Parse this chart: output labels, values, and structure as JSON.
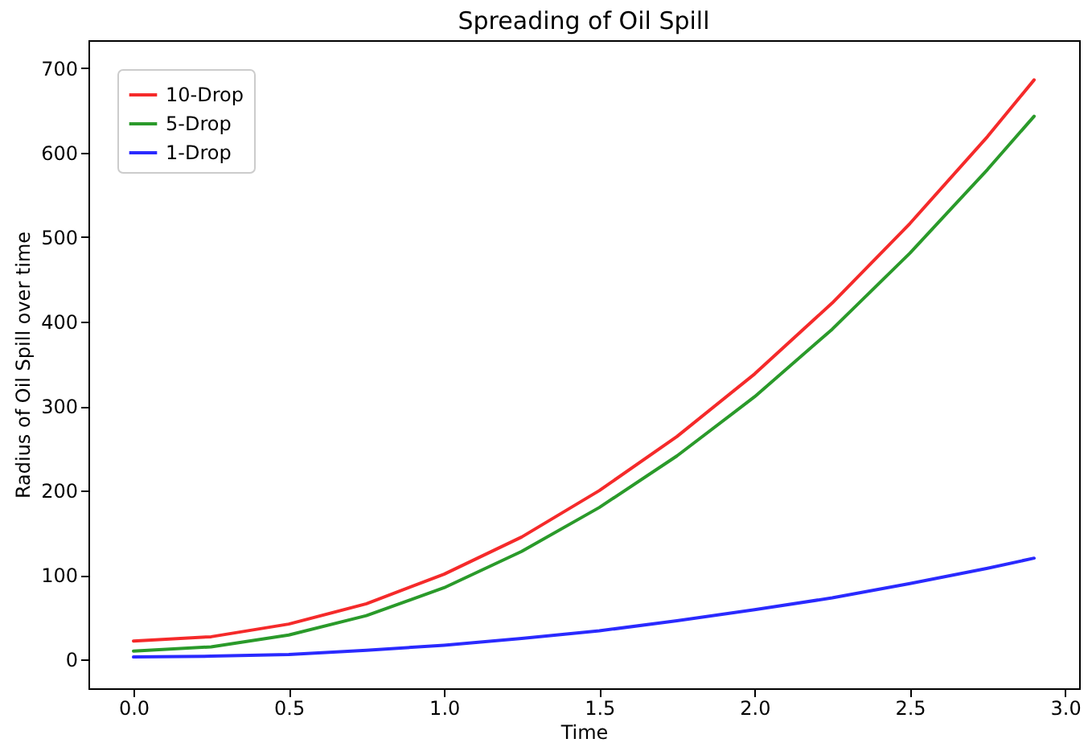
{
  "chart_data": {
    "type": "line",
    "title": "Spreading of Oil Spill",
    "xlabel": "Time",
    "ylabel": "Radius of Oil Spill over time",
    "x": [
      0,
      0.25,
      0.5,
      0.75,
      1.0,
      1.25,
      1.5,
      1.75,
      2.0,
      2.25,
      2.5,
      2.75,
      2.9
    ],
    "series": [
      {
        "name": "10-Drop",
        "color": "#f52a2a",
        "values": [
          22,
          27,
          42,
          66,
          101,
          145,
          200,
          264,
          338,
          422,
          516,
          619,
          686
        ]
      },
      {
        "name": "5-Drop",
        "color": "#2a9a2a",
        "values": [
          10,
          15,
          29,
          52,
          85,
          128,
          180,
          241,
          311,
          391,
          481,
          580,
          643
        ]
      },
      {
        "name": "1-Drop",
        "color": "#2a2aff",
        "values": [
          3,
          4,
          6,
          11,
          17,
          25,
          34,
          46,
          59,
          73,
          90,
          108,
          120
        ]
      }
    ],
    "xlim": [
      -0.145,
      3.045
    ],
    "ylim": [
      -34,
      733
    ],
    "xticks": [
      {
        "value": 0,
        "label": "0.0"
      },
      {
        "value": 0.5,
        "label": "0.5"
      },
      {
        "value": 1,
        "label": "1.0"
      },
      {
        "value": 1.5,
        "label": "1.5"
      },
      {
        "value": 2,
        "label": "2.0"
      },
      {
        "value": 2.5,
        "label": "2.5"
      },
      {
        "value": 3,
        "label": "3.0"
      }
    ],
    "yticks": [
      0,
      100,
      200,
      300,
      400,
      500,
      600,
      700
    ],
    "legend": "top left",
    "grid": false,
    "marker": "none",
    "line_style": "solid"
  }
}
